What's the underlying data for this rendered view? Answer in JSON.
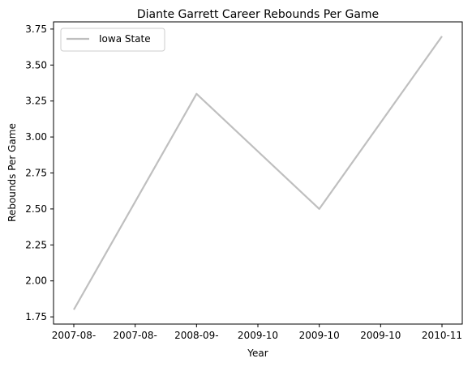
{
  "chart_data": {
    "type": "line",
    "title": "Diante Garrett Career Rebounds Per Game",
    "xlabel": "Year",
    "ylabel": "Rebounds Per Game",
    "x_tick_labels": [
      "2007-08-",
      "2007-08-",
      "2008-09-",
      "2009-10",
      "2009-10",
      "2009-10",
      "2010-11"
    ],
    "ylim": [
      1.7,
      3.8
    ],
    "y_ticks": [
      1.75,
      2.0,
      2.25,
      2.5,
      2.75,
      3.0,
      3.25,
      3.5,
      3.75
    ],
    "y_tick_labels": [
      "1.75",
      "2.00",
      "2.25",
      "2.50",
      "2.75",
      "3.00",
      "3.25",
      "3.50",
      "3.75"
    ],
    "grid": false,
    "legend_position": "top-left",
    "series": [
      {
        "name": "Iowa State",
        "color": "#bfbfbf",
        "points": [
          {
            "x": 0,
            "y": 1.8
          },
          {
            "x": 2,
            "y": 3.3
          },
          {
            "x": 4,
            "y": 2.5
          },
          {
            "x": 6,
            "y": 3.7
          }
        ]
      }
    ]
  }
}
